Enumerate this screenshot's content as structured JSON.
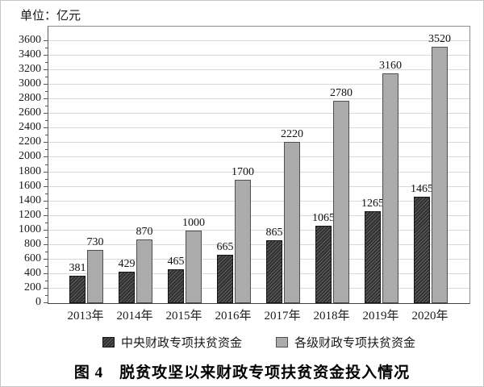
{
  "figure": {
    "unit_label": "单位：亿元",
    "caption": "图 4　脱贫攻坚以来财政专项扶贫资金投入情况"
  },
  "chart_data": {
    "type": "bar",
    "title": "脱贫攻坚以来财政专项扶贫资金投入情况",
    "unit": "亿元",
    "categories": [
      "2013年",
      "2014年",
      "2015年",
      "2016年",
      "2017年",
      "2018年",
      "2019年",
      "2020年"
    ],
    "series": [
      {
        "name": "中央财政专项扶贫资金",
        "values": [
          381,
          429,
          465,
          665,
          865,
          1065,
          1265,
          1465
        ],
        "color": "#333333",
        "pattern": "diagonal-hatch"
      },
      {
        "name": "各级财政专项扶贫资金",
        "values": [
          730,
          870,
          1000,
          1700,
          2220,
          2780,
          3160,
          3520
        ],
        "color": "#ababab",
        "pattern": "solid"
      }
    ],
    "ylim": [
      0,
      3800
    ],
    "ytick_step": 200,
    "ytick_label_max": 3600,
    "grid": true,
    "legend_position": "bottom",
    "value_labels": true
  },
  "colors": {
    "grid": "#d9d9d9",
    "axis": "#555555",
    "frame": "#8c8c8c",
    "text": "#1a1a1a",
    "background": "#ffffff"
  }
}
